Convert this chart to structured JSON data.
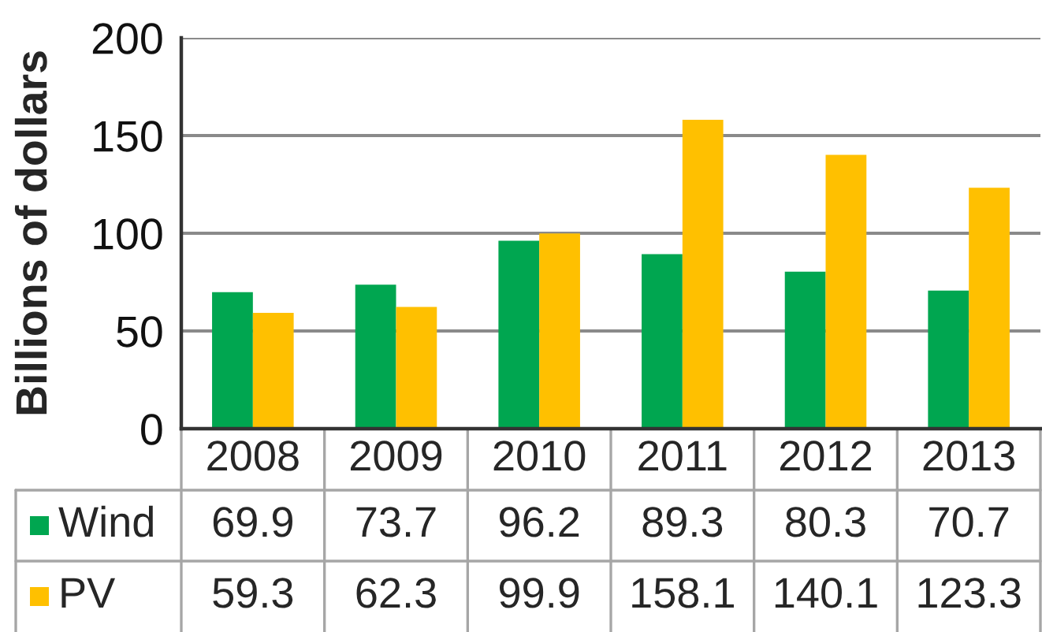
{
  "chart_data": {
    "type": "bar",
    "ylabel": "Billions of dollars",
    "categories": [
      "2008",
      "2009",
      "2010",
      "2011",
      "2012",
      "2013"
    ],
    "series": [
      {
        "name": "Wind",
        "color": "#00a650",
        "values": [
          69.9,
          73.7,
          96.2,
          89.3,
          80.3,
          70.7
        ]
      },
      {
        "name": "PV",
        "color": "#ffc000",
        "values": [
          59.3,
          62.3,
          99.9,
          158.1,
          140.1,
          123.3
        ]
      }
    ],
    "ylim": [
      0,
      200
    ],
    "yticks": [
      0,
      50,
      100,
      150,
      200
    ],
    "grid": "y",
    "legend": "bottom left",
    "data_labels": true
  }
}
